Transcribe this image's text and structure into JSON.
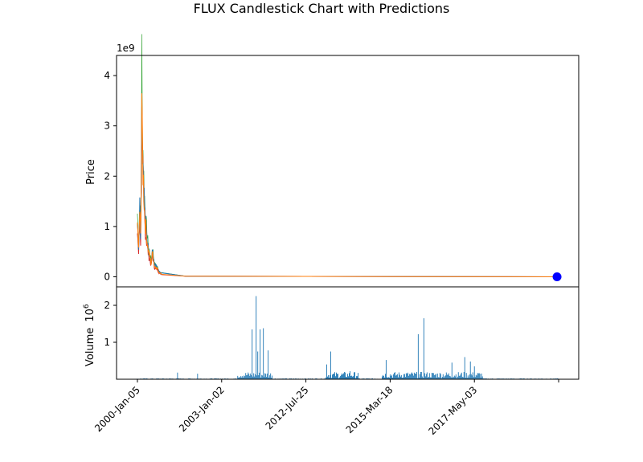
{
  "chart_data": {
    "title": "FLUX Candlestick Chart with Predictions",
    "type": "candlestick",
    "x_tick_labels": [
      "2000-Jan-05",
      "2003-Jan-02",
      "2012-Jul-25",
      "2015-Mar-18",
      "2017-May-03",
      ""
    ],
    "price_panel": {
      "ylabel": "Price",
      "scale_label": "1e9",
      "ylim": [
        -0.2,
        4.4
      ],
      "yticks": [
        0,
        1,
        2,
        3,
        4
      ],
      "spike_points": [
        [
          0.0,
          1.2
        ],
        [
          1.5,
          0.6
        ],
        [
          3.0,
          1.5
        ],
        [
          4.0,
          0.9
        ],
        [
          5.0,
          2.6
        ],
        [
          5.5,
          4.2
        ],
        [
          6.0,
          3.1
        ],
        [
          7.0,
          2.4
        ],
        [
          8.0,
          1.9
        ],
        [
          9.5,
          1.3
        ],
        [
          11.0,
          1.0
        ],
        [
          12.5,
          0.75
        ],
        [
          14.0,
          0.55
        ],
        [
          15.5,
          0.45
        ],
        [
          17.0,
          0.3
        ],
        [
          19.0,
          0.55
        ],
        [
          21.0,
          0.25
        ],
        [
          23.0,
          0.22
        ],
        [
          25.0,
          0.18
        ],
        [
          27.0,
          0.1
        ],
        [
          30.0,
          0.07
        ],
        [
          34.0,
          0.05
        ],
        [
          40.0,
          0.03
        ],
        [
          50.0,
          0.015
        ],
        [
          70.0,
          0.008
        ],
        [
          100.0,
          0.004
        ],
        [
          200.0,
          0.002
        ],
        [
          400.0,
          0.001
        ],
        [
          525.0,
          0.0005
        ]
      ],
      "series_colors": [
        "#2ca02c",
        "#d62728",
        "#1f77b4",
        "#ff7f0e"
      ],
      "prediction_marker": {
        "x": 523,
        "y": 0.0,
        "color": "#0000ff"
      }
    },
    "volume_panel": {
      "ylabel": "Volume",
      "scale_label": "10",
      "scale_exponent": "6",
      "ylim": [
        0,
        2.5
      ],
      "yticks": [
        1,
        2
      ],
      "bar_color": "#1f77b4",
      "peaks": [
        [
          50,
          0.18
        ],
        [
          75,
          0.15
        ],
        [
          143,
          1.35
        ],
        [
          148,
          2.25
        ],
        [
          150,
          0.75
        ],
        [
          153,
          1.35
        ],
        [
          157,
          1.38
        ],
        [
          163,
          0.78
        ],
        [
          236,
          0.4
        ],
        [
          241,
          0.75
        ],
        [
          265,
          0.22
        ],
        [
          310,
          0.52
        ],
        [
          350,
          1.22
        ],
        [
          357,
          1.65
        ],
        [
          392,
          0.45
        ],
        [
          408,
          0.6
        ],
        [
          415,
          0.48
        ],
        [
          420,
          0.35
        ]
      ],
      "busy_ranges": [
        [
          125,
          168
        ],
        [
          235,
          275
        ],
        [
          305,
          430
        ]
      ]
    }
  }
}
